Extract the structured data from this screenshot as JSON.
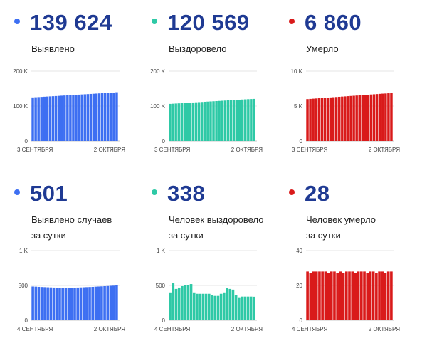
{
  "chart_data": [
    {
      "type": "bar",
      "value": "139 624",
      "label": [
        "Выявлено"
      ],
      "color": "#3d6ff2",
      "yticks": [
        {
          "v": 0,
          "t": "0"
        },
        {
          "v": 100000,
          "t": "100 K"
        },
        {
          "v": 200000,
          "t": "200 K"
        }
      ],
      "ylim": [
        0,
        200000
      ],
      "xlabel_start": "3 СЕНТЯБРЯ",
      "xlabel_end": "2 ОКТЯБРЯ",
      "values": [
        124800,
        125300,
        125800,
        126300,
        126800,
        127300,
        127800,
        128300,
        128800,
        129300,
        129800,
        130300,
        130800,
        131300,
        131800,
        132300,
        132800,
        133300,
        133800,
        134300,
        134800,
        135300,
        135800,
        136300,
        136800,
        137300,
        137800,
        138300,
        138800,
        139624
      ]
    },
    {
      "type": "bar",
      "value": "120 569",
      "label": [
        "Выздоровело"
      ],
      "color": "#2ec9a6",
      "yticks": [
        {
          "v": 0,
          "t": "0"
        },
        {
          "v": 100000,
          "t": "100 K"
        },
        {
          "v": 200000,
          "t": "200 K"
        }
      ],
      "ylim": [
        0,
        200000
      ],
      "xlabel_start": "3 СЕНТЯБРЯ",
      "xlabel_end": "2 ОКТЯБРЯ",
      "values": [
        106300,
        106800,
        107300,
        107800,
        108300,
        108800,
        109300,
        109800,
        110300,
        110800,
        111300,
        111800,
        112300,
        112800,
        113300,
        113800,
        114300,
        114800,
        115300,
        115800,
        116300,
        116800,
        117300,
        117800,
        118300,
        118800,
        119300,
        119800,
        120200,
        120569
      ]
    },
    {
      "type": "bar",
      "value": "6 860",
      "label": [
        "Умерло"
      ],
      "color": "#d91a1a",
      "yticks": [
        {
          "v": 0,
          "t": "0"
        },
        {
          "v": 5000,
          "t": "5 K"
        },
        {
          "v": 10000,
          "t": "10 K"
        }
      ],
      "ylim": [
        0,
        10000
      ],
      "xlabel_start": "3 СЕНТЯБРЯ",
      "xlabel_end": "2 ОКТЯБРЯ",
      "values": [
        6000,
        6030,
        6060,
        6090,
        6120,
        6150,
        6180,
        6210,
        6240,
        6270,
        6300,
        6330,
        6360,
        6390,
        6420,
        6450,
        6480,
        6510,
        6540,
        6570,
        6600,
        6630,
        6660,
        6690,
        6720,
        6750,
        6780,
        6800,
        6832,
        6860
      ]
    },
    {
      "type": "bar",
      "value": "501",
      "label": [
        "Выявлено случаев",
        "за сутки"
      ],
      "color": "#3d6ff2",
      "yticks": [
        {
          "v": 0,
          "t": "0"
        },
        {
          "v": 500,
          "t": "500"
        },
        {
          "v": 1000,
          "t": "1 K"
        }
      ],
      "ylim": [
        0,
        1000
      ],
      "xlabel_start": "4 СЕНТЯБРЯ",
      "xlabel_end": "2 ОКТЯБРЯ",
      "values": [
        485,
        483,
        480,
        478,
        476,
        474,
        472,
        470,
        468,
        466,
        465,
        466,
        467,
        468,
        469,
        470,
        472,
        474,
        476,
        478,
        480,
        483,
        485,
        487,
        490,
        492,
        495,
        497,
        501
      ]
    },
    {
      "type": "bar",
      "value": "338",
      "label": [
        "Человек выздоровело",
        "за сутки"
      ],
      "color": "#2ec9a6",
      "yticks": [
        {
          "v": 0,
          "t": "0"
        },
        {
          "v": 500,
          "t": "500"
        },
        {
          "v": 1000,
          "t": "1 K"
        }
      ],
      "ylim": [
        0,
        1000
      ],
      "xlabel_start": "4 СЕНТЯБРЯ",
      "xlabel_end": "2 ОКТЯБРЯ",
      "values": [
        400,
        540,
        450,
        470,
        490,
        500,
        510,
        520,
        400,
        380,
        380,
        380,
        380,
        380,
        360,
        350,
        350,
        380,
        400,
        460,
        450,
        440,
        360,
        330,
        340,
        340,
        340,
        340,
        338
      ]
    },
    {
      "type": "bar",
      "value": "28",
      "label": [
        "Человек умерло",
        "за сутки"
      ],
      "color": "#d91a1a",
      "yticks": [
        {
          "v": 0,
          "t": "0"
        },
        {
          "v": 20,
          "t": "20"
        },
        {
          "v": 40,
          "t": "40"
        }
      ],
      "ylim": [
        0,
        40
      ],
      "xlabel_start": "4 СЕНТЯБРЯ",
      "xlabel_end": "2 ОКТЯБРЯ",
      "values": [
        28,
        27,
        28,
        28,
        28,
        28,
        28,
        27,
        28,
        28,
        27,
        28,
        27,
        28,
        28,
        28,
        27,
        28,
        28,
        28,
        27,
        28,
        28,
        27,
        28,
        28,
        27,
        28,
        28
      ]
    }
  ]
}
